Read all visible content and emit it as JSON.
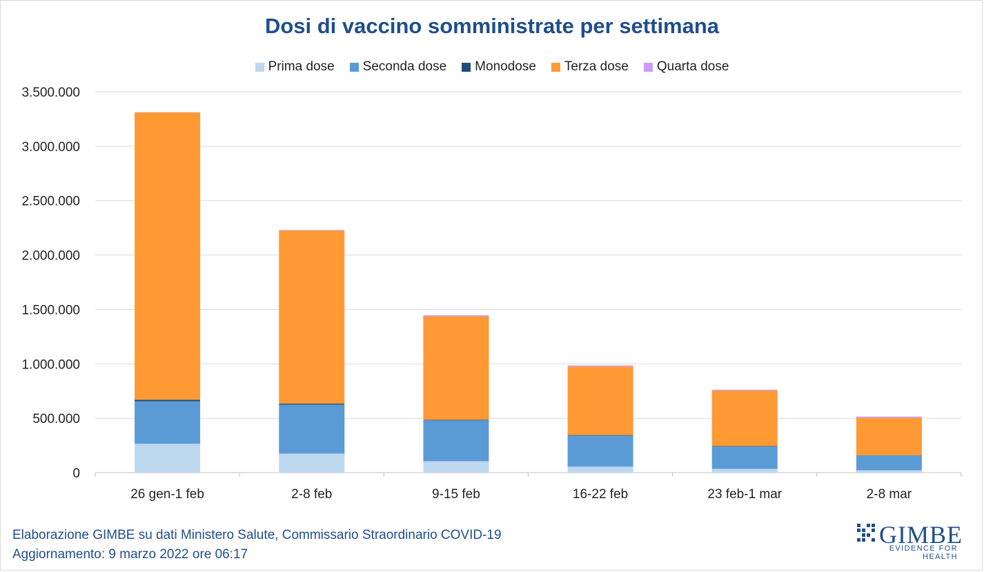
{
  "chart_data": {
    "type": "bar",
    "stacked": true,
    "title": "Dosi di vaccino somministrate per settimana",
    "categories": [
      "26 gen-1 feb",
      "2-8 feb",
      "9-15 feb",
      "16-22 feb",
      "23 feb-1 mar",
      "2-8 mar"
    ],
    "series": [
      {
        "name": "Prima dose",
        "color": "#bdd7ee",
        "values": [
          265000,
          175000,
          105000,
          55000,
          35000,
          22000
        ]
      },
      {
        "name": "Seconda dose",
        "color": "#5b9bd5",
        "values": [
          390000,
          450000,
          375000,
          285000,
          205000,
          135000
        ]
      },
      {
        "name": "Monodose",
        "color": "#1f4e79",
        "values": [
          15000,
          10000,
          6000,
          5000,
          4000,
          3000
        ]
      },
      {
        "name": "Terza dose",
        "color": "#ff9933",
        "values": [
          2640000,
          1590000,
          950000,
          630000,
          510000,
          345000
        ]
      },
      {
        "name": "Quarta dose",
        "color": "#cc99ff",
        "values": [
          2000,
          5000,
          10000,
          10000,
          8000,
          10000
        ]
      }
    ],
    "ylim": [
      0,
      3500000
    ],
    "yticks": [
      "0",
      "500.000",
      "1.000.000",
      "1.500.000",
      "2.000.000",
      "2.500.000",
      "3.000.000",
      "3.500.000"
    ],
    "ytick_values": [
      0,
      500000,
      1000000,
      1500000,
      2000000,
      2500000,
      3000000,
      3500000
    ],
    "grid": true,
    "legend": "top"
  },
  "footer": {
    "source": "Elaborazione GIMBE su dati Ministero Salute, Commissario Straordinario COVID-19",
    "updated": "Aggiornamento: 9 marzo 2022 ore 06:17"
  },
  "logo": {
    "name": "GIMBE",
    "tagline": "EVIDENCE FOR HEALTH"
  }
}
